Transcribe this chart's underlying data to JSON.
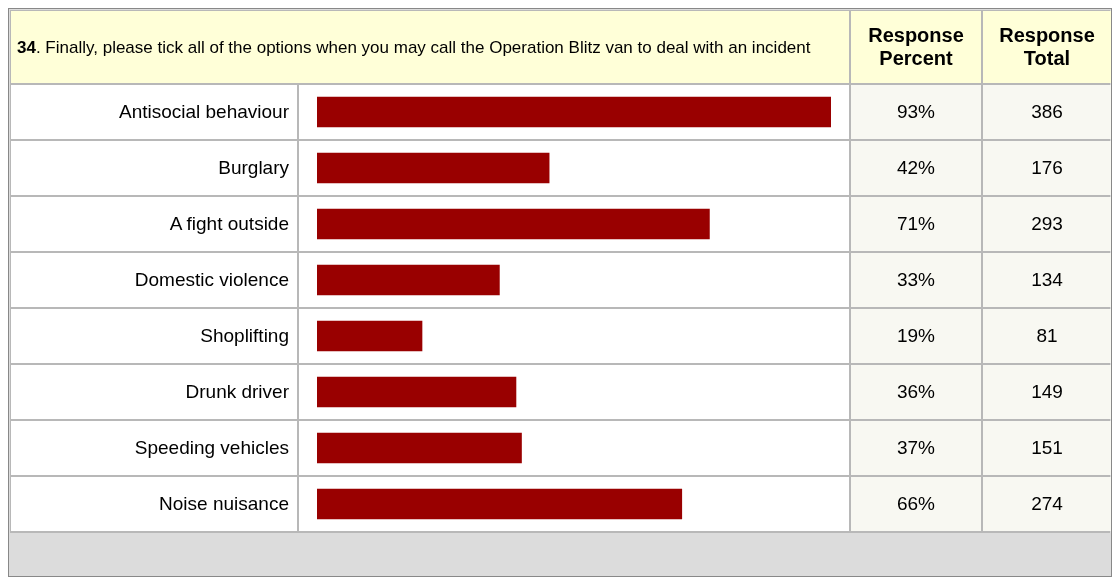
{
  "chart_data": {
    "type": "bar",
    "orientation": "horizontal",
    "title": "34. Finally, please tick all of the options when you may call the Operation Blitz van to deal with an incident",
    "categories": [
      "Antisocial behaviour",
      "Burglary",
      "A fight outside",
      "Domestic violence",
      "Shoplifting",
      "Drunk driver",
      "Speeding vehicles",
      "Noise nuisance"
    ],
    "series": [
      {
        "name": "Response Percent",
        "color": "#990000",
        "values": [
          93,
          42,
          71,
          33,
          19,
          36,
          37,
          66
        ],
        "value_labels": [
          "93%",
          "42%",
          "71%",
          "33%",
          "19%",
          "36%",
          "37%",
          "66%"
        ]
      }
    ],
    "annotations": [
      "Response Total",
      "386",
      "176",
      "293",
      "134",
      "81",
      "149",
      "151",
      "274"
    ],
    "tick_labels": false
  }
}
